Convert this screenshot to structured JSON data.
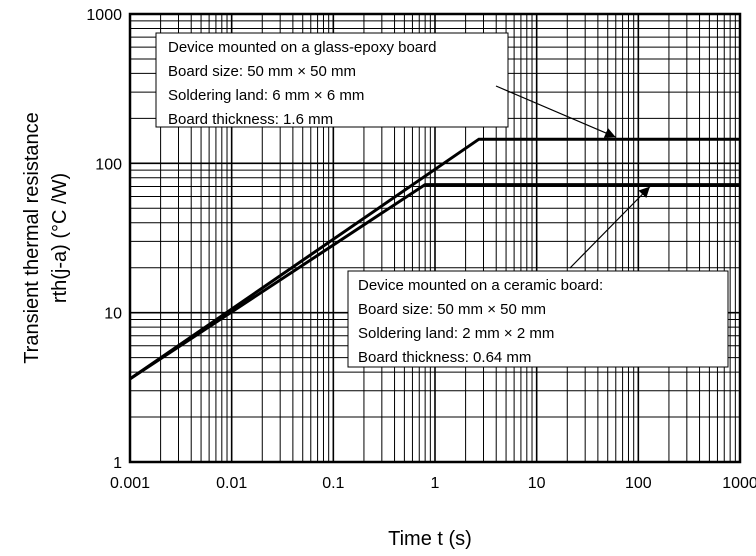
{
  "chart_data": {
    "type": "line",
    "xscale": "log",
    "yscale": "log",
    "xlim": [
      0.001,
      1000
    ],
    "ylim": [
      1,
      1000
    ],
    "grid": true,
    "xlabel": "Time t (s)",
    "ylabel_line1": "Transient thermal resistance",
    "ylabel_line2": "rth(j-a) (°C /W)",
    "x_tick_labels": [
      "0.001",
      "0.01",
      "0.1",
      "1",
      "10",
      "100",
      "1000"
    ],
    "y_tick_labels": [
      "1",
      "10",
      "100",
      "1000"
    ],
    "series": [
      {
        "x": [
          0.001,
          2.7,
          1000
        ],
        "y": [
          3.6,
          145,
          145
        ]
      },
      {
        "x": [
          0.001,
          0.8,
          1000
        ],
        "y": [
          3.6,
          72,
          72
        ]
      }
    ],
    "annotations": [
      {
        "lines": [
          "Device mounted on a glass-epoxy board",
          "Board size: 50 mm × 50 mm",
          "Soldering land: 6 mm × 6 mm",
          "Board thickness: 1.6 mm"
        ],
        "arrow_to": [
          60,
          145
        ]
      },
      {
        "lines": [
          "Device mounted on a ceramic board:",
          "Board size: 50 mm × 50 mm",
          "Soldering land: 2 mm × 2 mm",
          "Board thickness: 0.64 mm"
        ],
        "arrow_to": [
          130,
          72
        ]
      }
    ]
  }
}
